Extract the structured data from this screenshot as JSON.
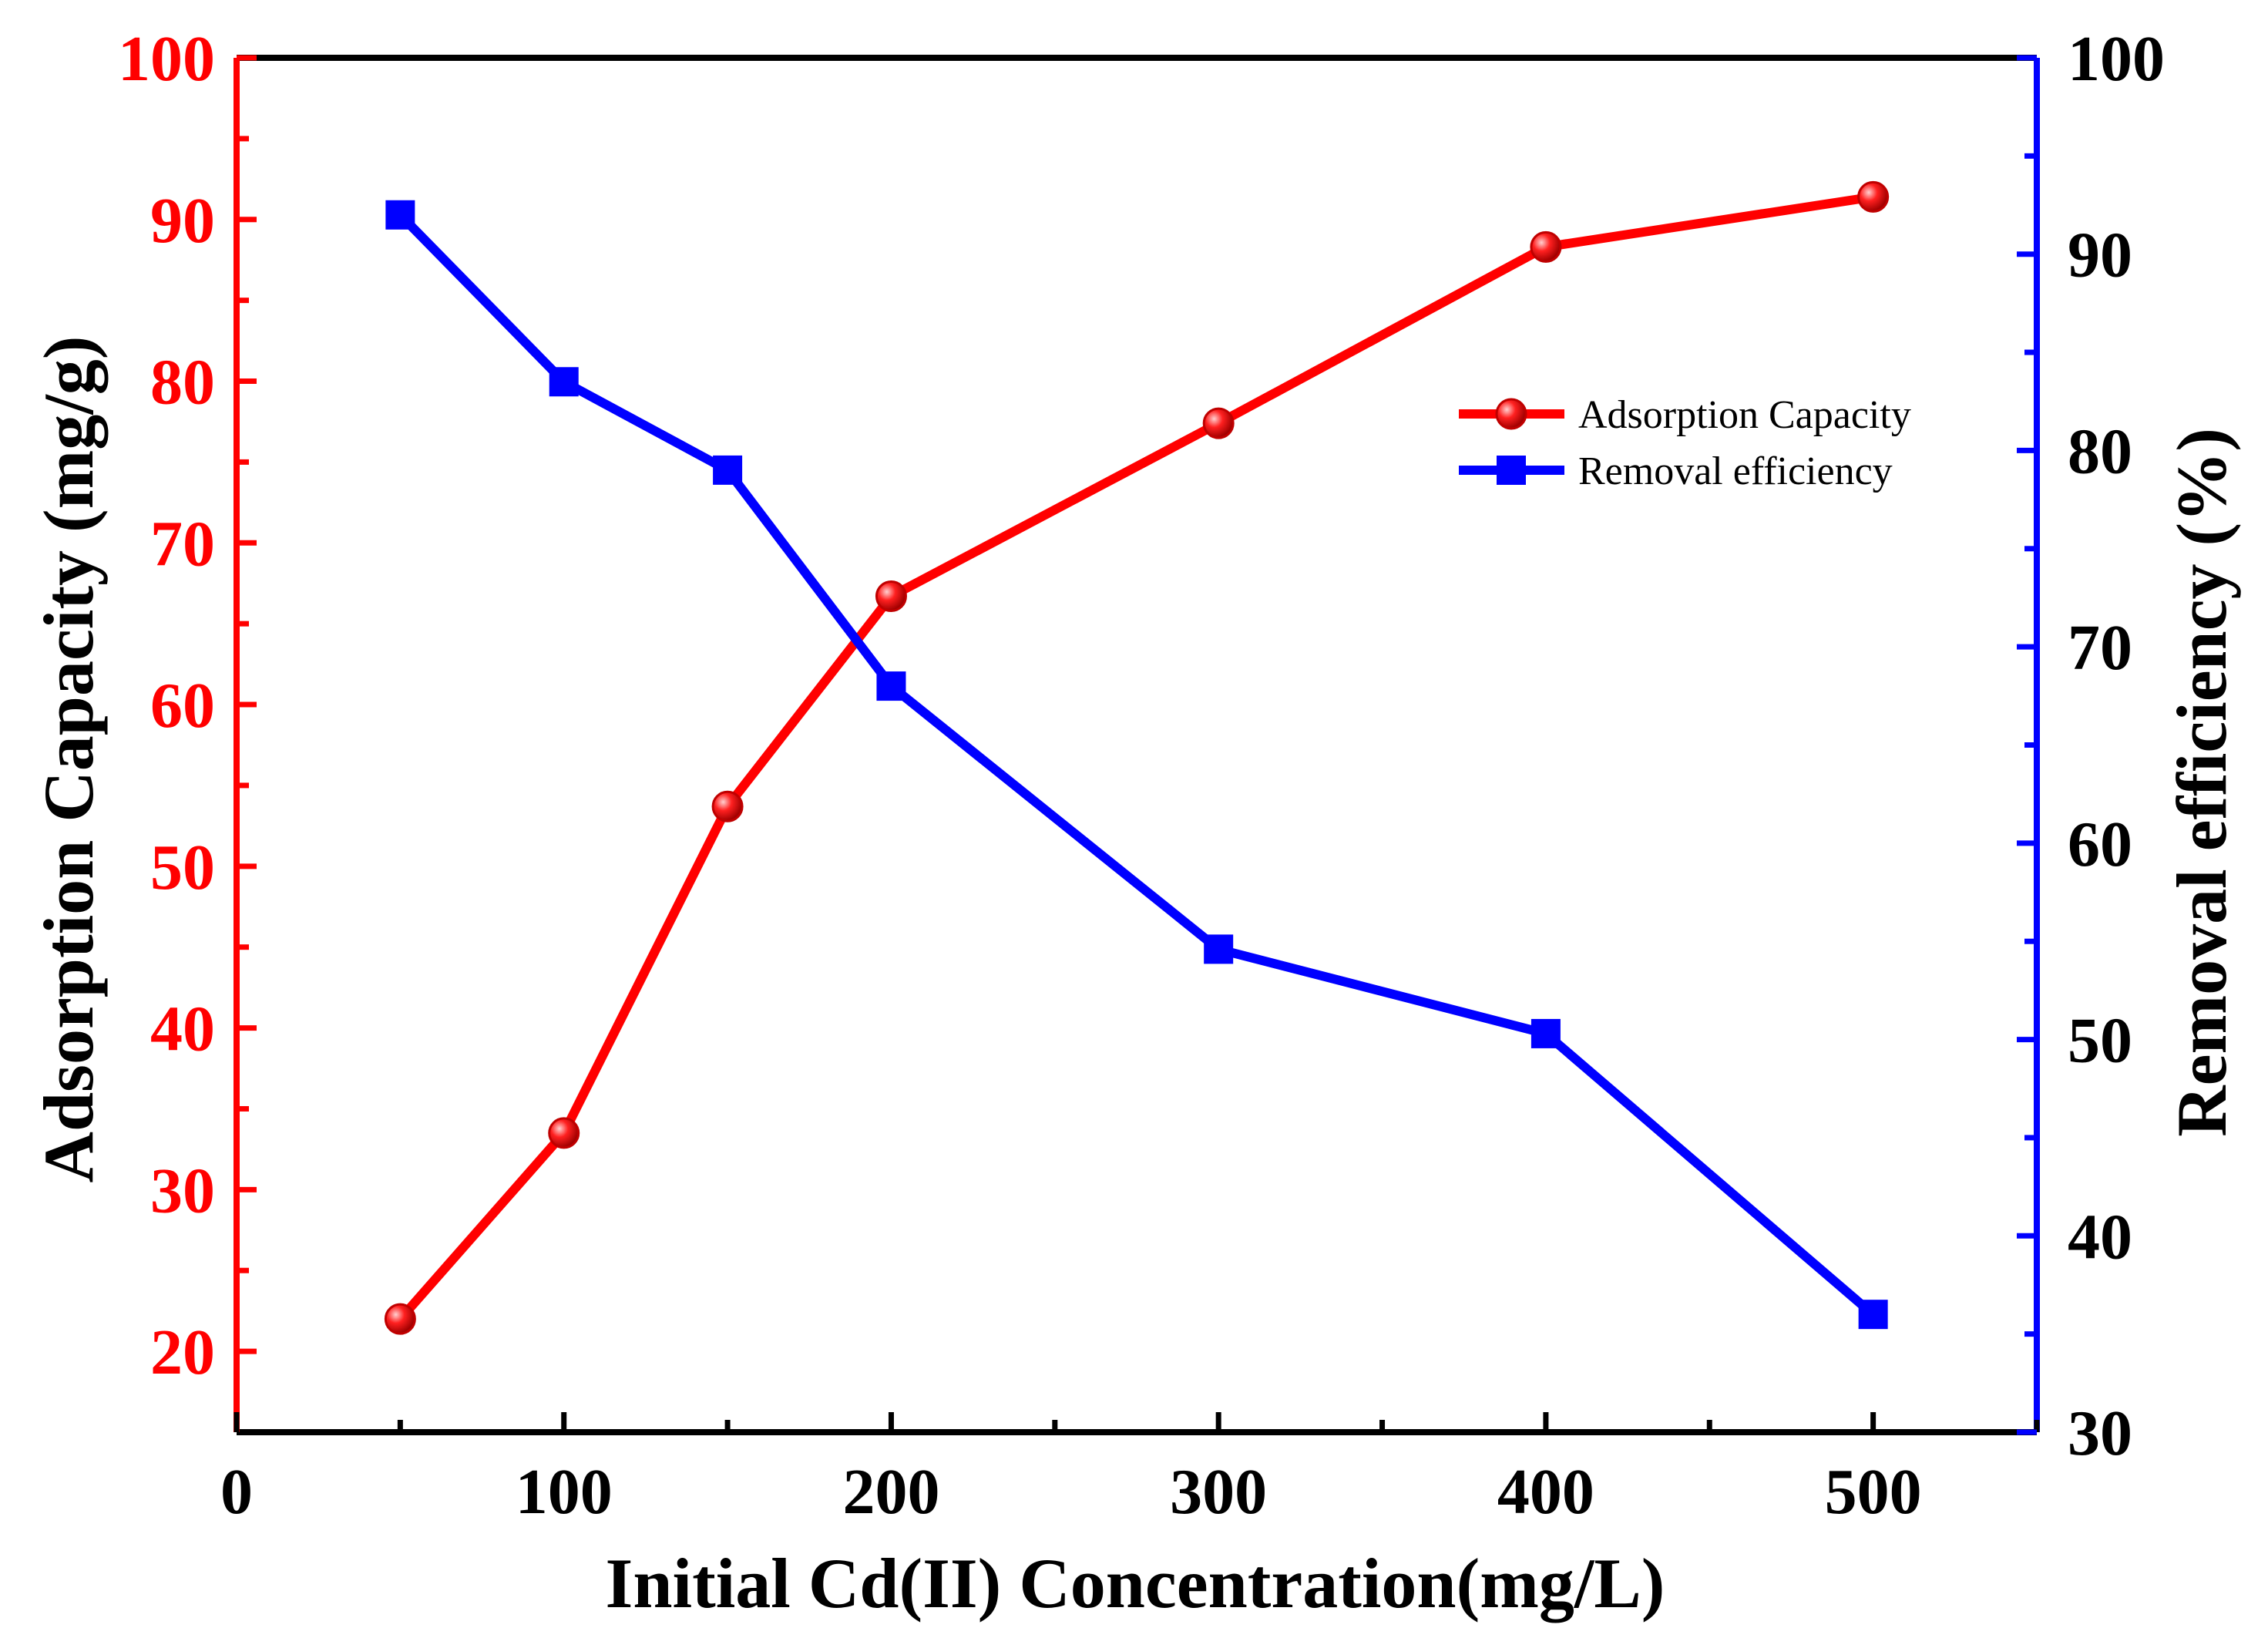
{
  "chart_data": {
    "type": "line",
    "title": "",
    "xlabel": "Initial Cd(II) Concentration(mg/L)",
    "ylabel_left": "Adsorption Capacity (mg/g)",
    "ylabel_right": "Removal efficiency (%)",
    "xlim": [
      0,
      550
    ],
    "ylim_left": [
      15,
      100
    ],
    "ylim_right": [
      30,
      100
    ],
    "x_ticks": [
      0,
      100,
      200,
      300,
      400,
      500
    ],
    "y_left_ticks": [
      20,
      30,
      40,
      50,
      60,
      70,
      80,
      90,
      100
    ],
    "y_right_ticks": [
      30,
      40,
      50,
      60,
      70,
      80,
      90,
      100
    ],
    "x": [
      50,
      100,
      150,
      200,
      300,
      400,
      500
    ],
    "series": [
      {
        "name": "Adsorption Capacity",
        "axis": "left",
        "color": "#ff0000",
        "marker": "circle",
        "values": [
          22.0,
          33.5,
          53.7,
          66.7,
          77.4,
          88.3,
          91.4
        ]
      },
      {
        "name": "Removal efficiency",
        "axis": "right",
        "color": "#0000ff",
        "marker": "square",
        "values": [
          92.0,
          83.5,
          79.0,
          68.0,
          54.6,
          50.3,
          36.0
        ]
      }
    ],
    "legend_position": "upper-right",
    "left_axis_color": "#ff0000",
    "right_axis_color": "#0000ff"
  }
}
